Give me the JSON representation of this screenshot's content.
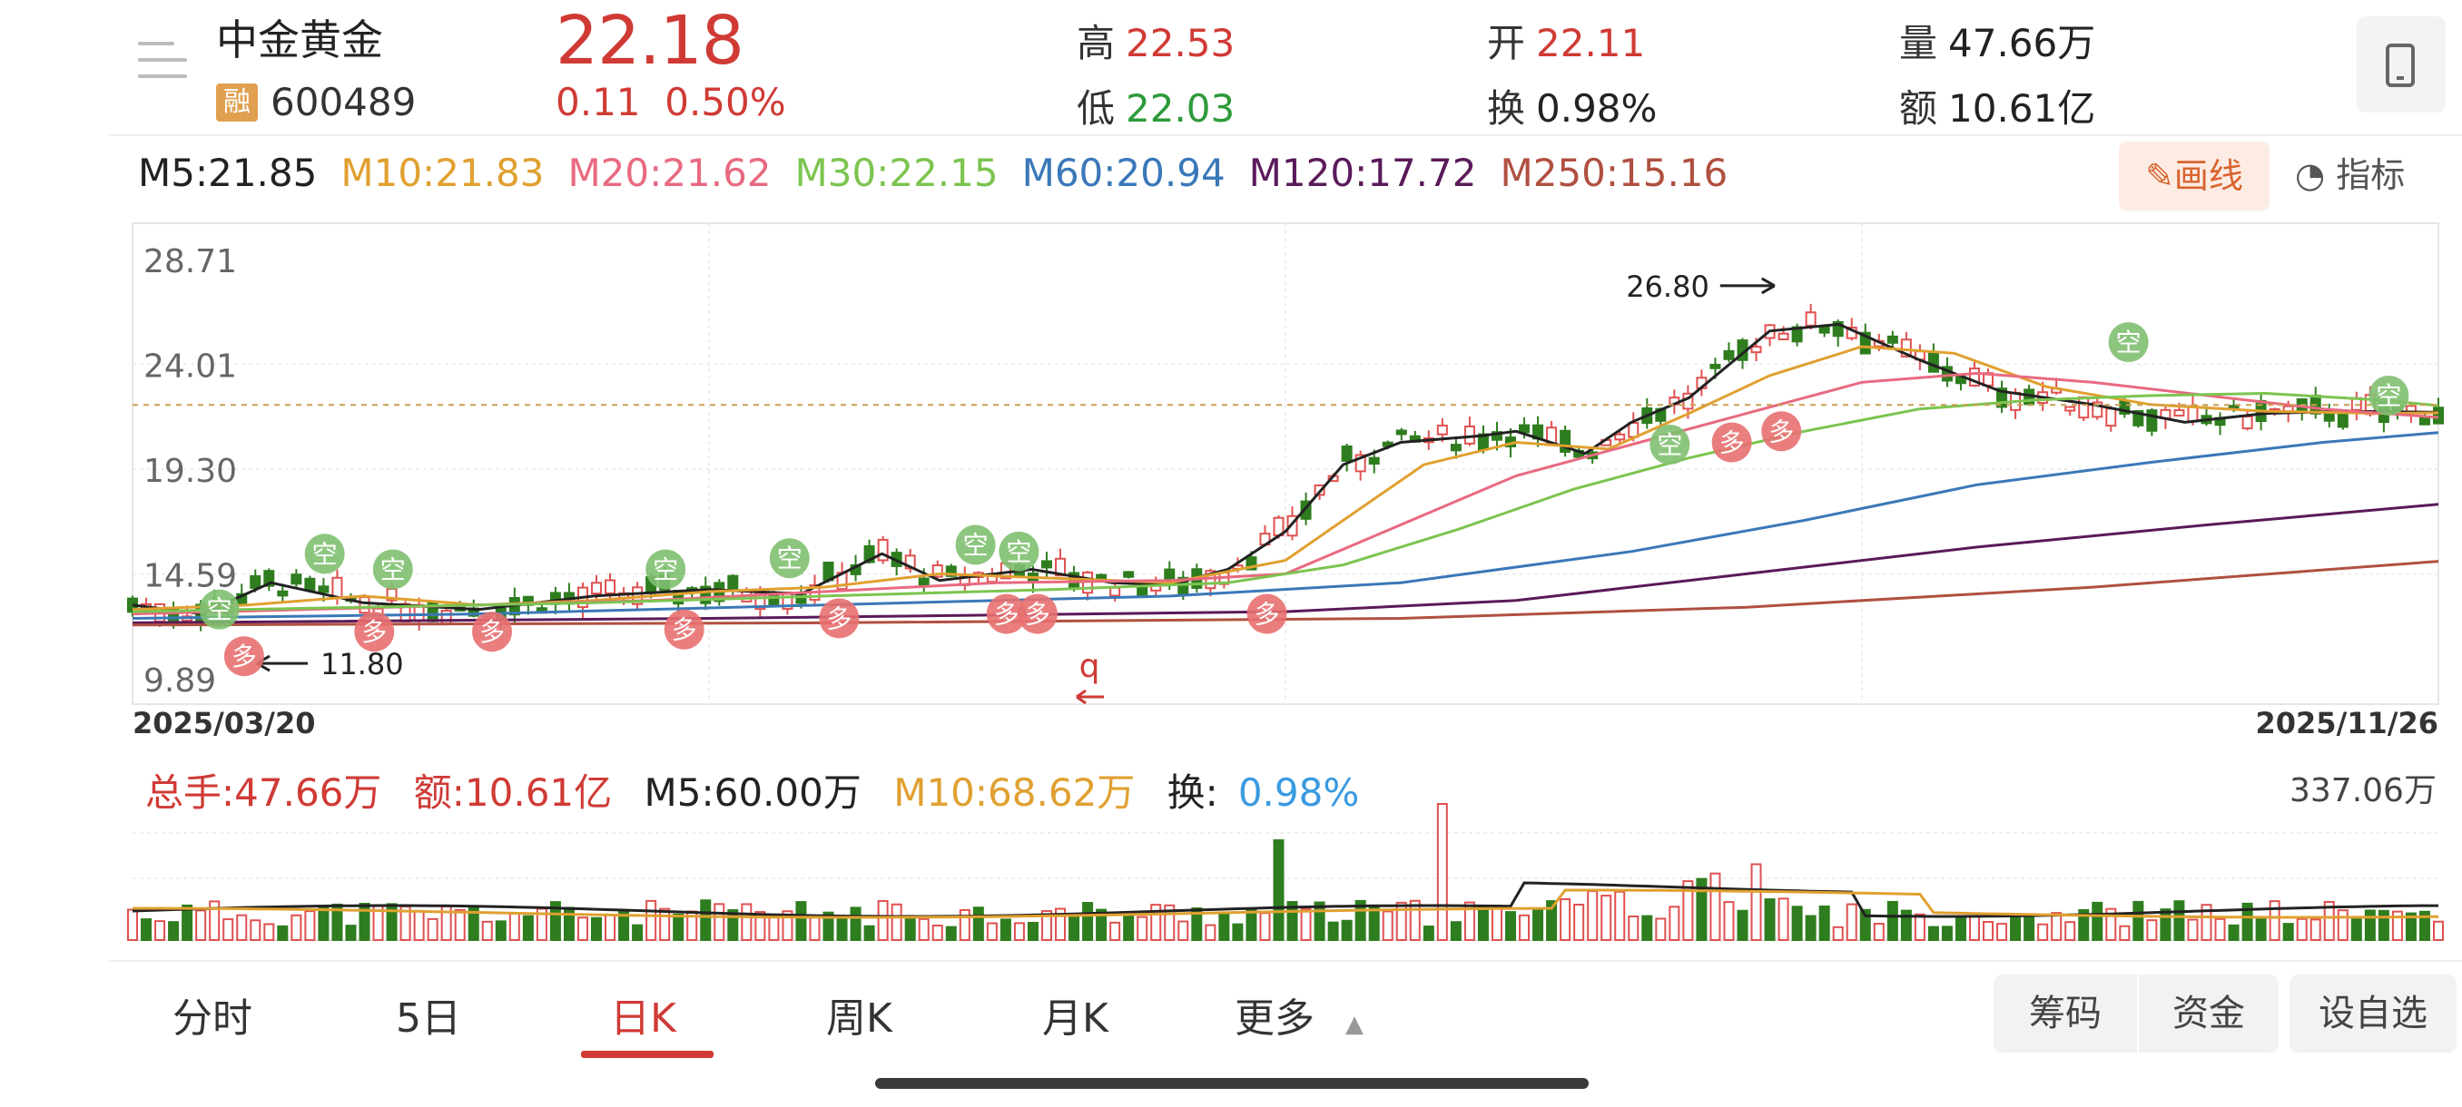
{
  "stock": {
    "name": "中金黄金",
    "badge": "融",
    "code": "600489",
    "price": "22.18",
    "change": "0.11",
    "change_pct": "0.50%"
  },
  "quote": {
    "high_label": "高",
    "high": "22.53",
    "low_label": "低",
    "low": "22.03",
    "open_label": "开",
    "open": "22.11",
    "turnover_label": "换",
    "turnover": "0.98%",
    "volume_label": "量",
    "volume": "47.66万",
    "amount_label": "额",
    "amount": "10.61亿"
  },
  "toolbar": {
    "draw_label": "画线",
    "indicator_label": "指标"
  },
  "ma_legend": [
    {
      "label": "M5:21.85",
      "color": "#222222"
    },
    {
      "label": "M10:21.83",
      "color": "#e0a030"
    },
    {
      "label": "M20:21.62",
      "color": "#e86a80"
    },
    {
      "label": "M30:22.15",
      "color": "#7cc450"
    },
    {
      "label": "M60:20.94",
      "color": "#3a78b8"
    },
    {
      "label": "M120:17.72",
      "color": "#5a1a5a"
    },
    {
      "label": "M250:15.16",
      "color": "#b05040"
    }
  ],
  "volume_legend": {
    "total": "总手:47.66万",
    "amount": "额:10.61亿",
    "m5": "M5:60.00万",
    "m10": "M10:68.62万",
    "turnover_label": "换:",
    "turnover": "0.98%",
    "max": "337.06万"
  },
  "chart_data": {
    "type": "candlestick",
    "y_ticks": [
      "28.71",
      "24.01",
      "19.30",
      "14.59",
      "9.89"
    ],
    "ylim": [
      9.89,
      28.71
    ],
    "x_start": "2025/03/20",
    "x_end": "2025/11/26",
    "annotations": {
      "high_label": "26.80",
      "low_label": "11.80",
      "last_price": 22.18,
      "buy_label": "多",
      "sell_label": "空",
      "cursor_label": "q"
    },
    "ma_curves": {
      "m5": [
        [
          0,
          13.2
        ],
        [
          0.06,
          12.8
        ],
        [
          0.12,
          14.2
        ],
        [
          0.2,
          13.3
        ],
        [
          0.3,
          13.0
        ],
        [
          0.4,
          13.6
        ],
        [
          0.5,
          13.9
        ],
        [
          0.58,
          13.7
        ],
        [
          0.65,
          15.5
        ],
        [
          0.7,
          14.3
        ],
        [
          0.78,
          14.8
        ],
        [
          0.85,
          14.2
        ],
        [
          0.9,
          14.1
        ],
        [
          0.95,
          14.8
        ],
        [
          1.0,
          16.5
        ],
        [
          1.05,
          19.5
        ],
        [
          1.1,
          20.5
        ],
        [
          1.17,
          20.8
        ],
        [
          1.2,
          21.0
        ],
        [
          1.26,
          20.0
        ],
        [
          1.3,
          21.4
        ],
        [
          1.35,
          22.5
        ],
        [
          1.42,
          25.5
        ],
        [
          1.48,
          25.8
        ],
        [
          1.55,
          24.2
        ],
        [
          1.62,
          22.8
        ],
        [
          1.7,
          22.2
        ],
        [
          1.78,
          21.4
        ],
        [
          1.85,
          21.8
        ],
        [
          1.92,
          21.9
        ],
        [
          2.0,
          21.85
        ]
      ],
      "m10": [
        [
          0,
          13.0
        ],
        [
          0.1,
          13.2
        ],
        [
          0.2,
          13.6
        ],
        [
          0.3,
          13.2
        ],
        [
          0.4,
          13.4
        ],
        [
          0.5,
          13.8
        ],
        [
          0.6,
          14.0
        ],
        [
          0.7,
          14.6
        ],
        [
          0.8,
          14.4
        ],
        [
          0.9,
          14.2
        ],
        [
          1.0,
          15.2
        ],
        [
          1.05,
          17.0
        ],
        [
          1.12,
          19.5
        ],
        [
          1.2,
          20.5
        ],
        [
          1.28,
          20.2
        ],
        [
          1.35,
          21.8
        ],
        [
          1.42,
          23.5
        ],
        [
          1.5,
          24.8
        ],
        [
          1.58,
          24.5
        ],
        [
          1.66,
          23.0
        ],
        [
          1.75,
          22.2
        ],
        [
          1.85,
          21.9
        ],
        [
          1.95,
          21.8
        ],
        [
          2.0,
          21.83
        ]
      ],
      "m20": [
        [
          0,
          12.8
        ],
        [
          0.15,
          13.0
        ],
        [
          0.3,
          13.2
        ],
        [
          0.45,
          13.4
        ],
        [
          0.6,
          13.8
        ],
        [
          0.75,
          14.2
        ],
        [
          0.9,
          14.3
        ],
        [
          1.0,
          14.6
        ],
        [
          1.1,
          16.8
        ],
        [
          1.2,
          19.0
        ],
        [
          1.3,
          20.4
        ],
        [
          1.4,
          21.8
        ],
        [
          1.5,
          23.2
        ],
        [
          1.6,
          23.6
        ],
        [
          1.7,
          23.2
        ],
        [
          1.8,
          22.6
        ],
        [
          1.9,
          22.0
        ],
        [
          2.0,
          21.62
        ]
      ],
      "m30": [
        [
          0,
          12.9
        ],
        [
          0.2,
          13.1
        ],
        [
          0.4,
          13.3
        ],
        [
          0.6,
          13.6
        ],
        [
          0.8,
          13.9
        ],
        [
          0.95,
          14.2
        ],
        [
          1.05,
          15.0
        ],
        [
          1.15,
          16.6
        ],
        [
          1.25,
          18.4
        ],
        [
          1.35,
          19.8
        ],
        [
          1.45,
          21.0
        ],
        [
          1.55,
          22.0
        ],
        [
          1.65,
          22.4
        ],
        [
          1.75,
          22.6
        ],
        [
          1.85,
          22.7
        ],
        [
          1.95,
          22.4
        ],
        [
          2.0,
          22.15
        ]
      ],
      "m60": [
        [
          0,
          12.6
        ],
        [
          0.3,
          12.8
        ],
        [
          0.6,
          13.2
        ],
        [
          0.9,
          13.6
        ],
        [
          1.1,
          14.2
        ],
        [
          1.3,
          15.6
        ],
        [
          1.45,
          17.0
        ],
        [
          1.6,
          18.6
        ],
        [
          1.75,
          19.6
        ],
        [
          1.9,
          20.5
        ],
        [
          2.0,
          20.94
        ]
      ],
      "m120": [
        [
          0,
          12.4
        ],
        [
          0.5,
          12.6
        ],
        [
          1.0,
          12.9
        ],
        [
          1.2,
          13.4
        ],
        [
          1.4,
          14.6
        ],
        [
          1.6,
          15.8
        ],
        [
          1.8,
          16.8
        ],
        [
          2.0,
          17.72
        ]
      ],
      "m250": [
        [
          0,
          12.3
        ],
        [
          0.6,
          12.4
        ],
        [
          1.1,
          12.6
        ],
        [
          1.4,
          13.1
        ],
        [
          1.7,
          14.0
        ],
        [
          2.0,
          15.16
        ]
      ]
    }
  },
  "tabs": [
    {
      "label": "分时"
    },
    {
      "label": "5日"
    },
    {
      "label": "日K"
    },
    {
      "label": "周K"
    },
    {
      "label": "月K"
    },
    {
      "label": "更多"
    }
  ],
  "actions": {
    "chips": "筹码",
    "funds": "资金",
    "watchlist": "设自选"
  }
}
